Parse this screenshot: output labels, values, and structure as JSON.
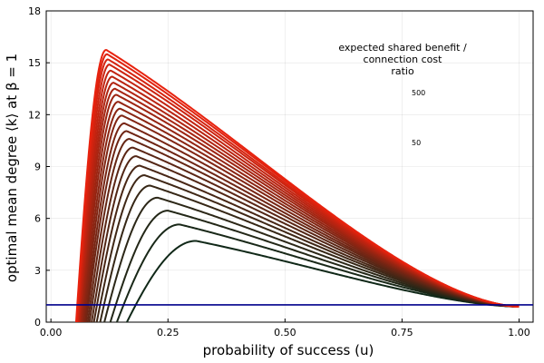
{
  "chart_data": {
    "type": "line",
    "xlabel": "probability of success (u)",
    "ylabel": "optimal mean degree ⟨k⟩ at β = 1",
    "xlim": [
      -0.01,
      1.03
    ],
    "ylim": [
      0,
      18
    ],
    "x_ticks": [
      "0.00",
      "0.25",
      "0.50",
      "0.75",
      "1.00"
    ],
    "x_tick_values": [
      0,
      0.25,
      0.5,
      0.75,
      1.0
    ],
    "y_ticks": [
      "0",
      "3",
      "6",
      "9",
      "12",
      "15",
      "18"
    ],
    "y_tick_values": [
      0,
      3,
      6,
      9,
      12,
      15,
      18
    ],
    "grid": true,
    "colorbar": {
      "title_lines": [
        "expected shared benefit /",
        "connection cost",
        "ratio"
      ],
      "max_label": "500",
      "min_label": "50",
      "color_low": "#0a2a10",
      "color_high": "#e8220e",
      "placement": "top-right"
    },
    "series_colors": {
      "low": "#102818",
      "high": "#e8220e"
    },
    "baseline": {
      "y": 1,
      "color": "#00008b"
    },
    "series": [
      {
        "ratio": 50,
        "x0": 0.135,
        "peak_x": 0.31,
        "peak_y": 4.7
      },
      {
        "ratio": 70,
        "x0": 0.12,
        "peak_x": 0.275,
        "peak_y": 5.65
      },
      {
        "ratio": 90,
        "x0": 0.11,
        "peak_x": 0.25,
        "peak_y": 6.45
      },
      {
        "ratio": 110,
        "x0": 0.1,
        "peak_x": 0.228,
        "peak_y": 7.2
      },
      {
        "ratio": 130,
        "x0": 0.093,
        "peak_x": 0.212,
        "peak_y": 7.9
      },
      {
        "ratio": 150,
        "x0": 0.087,
        "peak_x": 0.2,
        "peak_y": 8.5
      },
      {
        "ratio": 170,
        "x0": 0.082,
        "peak_x": 0.19,
        "peak_y": 9.05
      },
      {
        "ratio": 190,
        "x0": 0.078,
        "peak_x": 0.182,
        "peak_y": 9.6
      },
      {
        "ratio": 210,
        "x0": 0.074,
        "peak_x": 0.175,
        "peak_y": 10.1
      },
      {
        "ratio": 230,
        "x0": 0.071,
        "peak_x": 0.168,
        "peak_y": 10.6
      },
      {
        "ratio": 250,
        "x0": 0.068,
        "peak_x": 0.162,
        "peak_y": 11.05
      },
      {
        "ratio": 270,
        "x0": 0.066,
        "peak_x": 0.157,
        "peak_y": 11.5
      },
      {
        "ratio": 290,
        "x0": 0.064,
        "peak_x": 0.152,
        "peak_y": 11.95
      },
      {
        "ratio": 310,
        "x0": 0.062,
        "peak_x": 0.148,
        "peak_y": 12.35
      },
      {
        "ratio": 330,
        "x0": 0.06,
        "peak_x": 0.144,
        "peak_y": 12.75
      },
      {
        "ratio": 350,
        "x0": 0.059,
        "peak_x": 0.14,
        "peak_y": 13.15
      },
      {
        "ratio": 370,
        "x0": 0.057,
        "peak_x": 0.137,
        "peak_y": 13.5
      },
      {
        "ratio": 390,
        "x0": 0.056,
        "peak_x": 0.134,
        "peak_y": 13.85
      },
      {
        "ratio": 410,
        "x0": 0.055,
        "peak_x": 0.131,
        "peak_y": 14.2
      },
      {
        "ratio": 430,
        "x0": 0.054,
        "peak_x": 0.128,
        "peak_y": 14.55
      },
      {
        "ratio": 450,
        "x0": 0.053,
        "peak_x": 0.125,
        "peak_y": 14.9
      },
      {
        "ratio": 470,
        "x0": 0.052,
        "peak_x": 0.122,
        "peak_y": 15.2
      },
      {
        "ratio": 485,
        "x0": 0.051,
        "peak_x": 0.12,
        "peak_y": 15.5
      },
      {
        "ratio": 500,
        "x0": 0.05,
        "peak_x": 0.118,
        "peak_y": 15.75
      }
    ],
    "end_point": {
      "x": 1.0,
      "y": 0.9
    }
  }
}
